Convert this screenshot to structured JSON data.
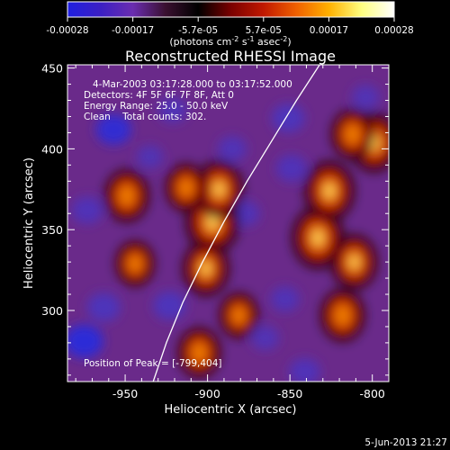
{
  "colorbar": {
    "ticks": [
      "-0.00028",
      "-0.00017",
      "-5.7e-05",
      "5.7e-05",
      "0.00017",
      "0.00028"
    ],
    "unit_label_text": "(photons cm",
    "unit_label_sup1": "-2",
    "unit_label_mid": " s",
    "unit_label_sup2": "-1",
    "unit_label_end": " asec",
    "unit_label_sup3": "-2",
    "unit_label_close": ")",
    "colors": [
      "#1f1fe0",
      "#3b1fc4",
      "#6a2db0",
      "#3a1030",
      "#000000",
      "#7a0000",
      "#c01800",
      "#f06000",
      "#ffb000",
      "#ffff80",
      "#ffffff"
    ]
  },
  "plot": {
    "title": "Reconstructed RHESSI Image",
    "info_lines": [
      "4-Mar-2003 03:17:28.000 to 03:17:52.000",
      "Detectors: 4F 5F 6F 7F 8F, Att 0",
      "Energy Range: 25.0 - 50.0 keV",
      "Clean    Total counts: 302."
    ],
    "peak_label": "Position of Peak = [-799,404]",
    "date_stamp": "5-Jun-2013 21:27"
  },
  "chart_data": {
    "type": "heatmap",
    "title": "Reconstructed RHESSI Image",
    "xlabel": "Heliocentric X (arcsec)",
    "ylabel": "Heliocentric Y (arcsec)",
    "xlim": [
      -985,
      -790
    ],
    "ylim": [
      256,
      452
    ],
    "xticks": [
      -950,
      -900,
      -850,
      -800
    ],
    "yticks": [
      300,
      350,
      400,
      450
    ],
    "xtick_labels": [
      "-950",
      "-900",
      "-850",
      "-800"
    ],
    "ytick_labels": [
      "300",
      "350",
      "400",
      "450"
    ],
    "peak": [
      -799,
      404
    ],
    "limb_curve": [
      [
        -933,
        256
      ],
      [
        -925,
        280
      ],
      [
        -915,
        305
      ],
      [
        -903,
        330
      ],
      [
        -890,
        355
      ],
      [
        -876,
        380
      ],
      [
        -861,
        405
      ],
      [
        -846,
        430
      ],
      [
        -832,
        452
      ]
    ],
    "bright_sources": [
      {
        "x": -897,
        "y": 355,
        "level": 1.0
      },
      {
        "x": -893,
        "y": 375,
        "level": 0.85
      },
      {
        "x": -833,
        "y": 345,
        "level": 0.95
      },
      {
        "x": -826,
        "y": 374,
        "level": 0.9
      },
      {
        "x": -811,
        "y": 330,
        "level": 0.8
      },
      {
        "x": -949,
        "y": 371,
        "level": 0.75
      },
      {
        "x": -913,
        "y": 376,
        "level": 0.65
      },
      {
        "x": -901,
        "y": 326,
        "level": 0.8
      },
      {
        "x": -944,
        "y": 329,
        "level": 0.6
      },
      {
        "x": -799,
        "y": 404,
        "level": 0.9
      },
      {
        "x": -812,
        "y": 409,
        "level": 0.7
      },
      {
        "x": -905,
        "y": 274,
        "level": 0.7
      },
      {
        "x": -881,
        "y": 297,
        "level": 0.6
      },
      {
        "x": -818,
        "y": 297,
        "level": 0.75
      }
    ],
    "dark_sources": [
      {
        "x": -957,
        "y": 412,
        "level": 0.8
      },
      {
        "x": -921,
        "y": 424,
        "level": 0.5
      },
      {
        "x": -973,
        "y": 362,
        "level": 0.6
      },
      {
        "x": -963,
        "y": 302,
        "level": 0.7
      },
      {
        "x": -975,
        "y": 281,
        "level": 0.95
      },
      {
        "x": -923,
        "y": 303,
        "level": 0.7
      },
      {
        "x": -885,
        "y": 400,
        "level": 0.5
      },
      {
        "x": -877,
        "y": 360,
        "level": 0.5
      },
      {
        "x": -851,
        "y": 419,
        "level": 0.7
      },
      {
        "x": -849,
        "y": 388,
        "level": 0.6
      },
      {
        "x": -853,
        "y": 307,
        "level": 0.5
      },
      {
        "x": -841,
        "y": 262,
        "level": 0.6
      },
      {
        "x": -865,
        "y": 283,
        "level": 0.45
      },
      {
        "x": -804,
        "y": 432,
        "level": 0.45
      },
      {
        "x": -935,
        "y": 395,
        "level": 0.4
      }
    ]
  }
}
